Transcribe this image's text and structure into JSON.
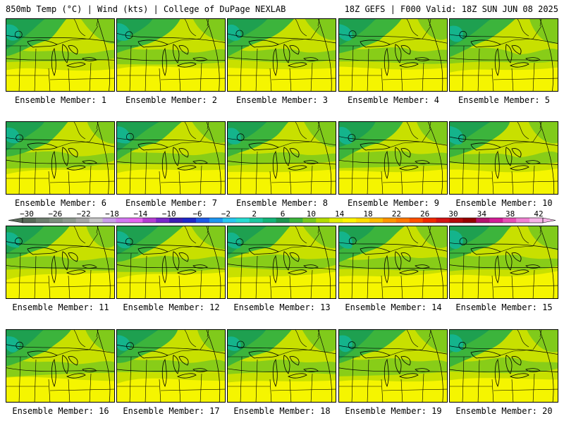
{
  "header": {
    "left": "850mb Temp (°C) | Wind (kts) | College of DuPage NEXLAB",
    "right": "18Z GEFS | F000 Valid: 18Z SUN JUN 08 2025"
  },
  "panels": [
    {
      "label": "Ensemble Member: 1"
    },
    {
      "label": "Ensemble Member: 2"
    },
    {
      "label": "Ensemble Member: 3"
    },
    {
      "label": "Ensemble Member: 4"
    },
    {
      "label": "Ensemble Member: 5"
    },
    {
      "label": "Ensemble Member: 6"
    },
    {
      "label": "Ensemble Member: 7"
    },
    {
      "label": "Ensemble Member: 8"
    },
    {
      "label": "Ensemble Member: 9"
    },
    {
      "label": "Ensemble Member: 10"
    },
    {
      "label": "Ensemble Member: 11"
    },
    {
      "label": "Ensemble Member: 12"
    },
    {
      "label": "Ensemble Member: 13"
    },
    {
      "label": "Ensemble Member: 14"
    },
    {
      "label": "Ensemble Member: 15"
    },
    {
      "label": "Ensemble Member: 16"
    },
    {
      "label": "Ensemble Member: 17"
    },
    {
      "label": "Ensemble Member: 18"
    },
    {
      "label": "Ensemble Member: 19"
    },
    {
      "label": "Ensemble Member: 20"
    }
  ],
  "colorbar": {
    "ticks": [
      "−30",
      "−26",
      "−22",
      "−18",
      "−14",
      "−10",
      "−6",
      "−2",
      "2",
      "6",
      "10",
      "14",
      "18",
      "22",
      "26",
      "30",
      "34",
      "38",
      "42"
    ],
    "colors": [
      "#5a6a5a",
      "#6e7e6e",
      "#7e8e7e",
      "#8e9a8e",
      "#a6a6a6",
      "#c8c8c8",
      "#c89ee8",
      "#d278f0",
      "#e664f0",
      "#b43cd2",
      "#7828c8",
      "#3c1eb4",
      "#1e28c8",
      "#1e5ae6",
      "#1e96f0",
      "#28c8f0",
      "#28dcd2",
      "#1ec8a0",
      "#14b478",
      "#1e9650",
      "#3cb43c",
      "#78c81e",
      "#b4dc00",
      "#e6f000",
      "#fff500",
      "#ffdc00",
      "#ffbe00",
      "#ff9600",
      "#ff7800",
      "#ff5000",
      "#f02800",
      "#d21414",
      "#b40a0a",
      "#960000",
      "#b4146e",
      "#d21e96",
      "#e650b4",
      "#f082d2",
      "#f5b4e6"
    ]
  },
  "map_colors": {
    "dark_green": "#1ea050",
    "mid_green": "#3cb43c",
    "light_green": "#78c81e",
    "yellow_green": "#c8e000",
    "yellow": "#f5f500",
    "teal": "#14b48c"
  }
}
